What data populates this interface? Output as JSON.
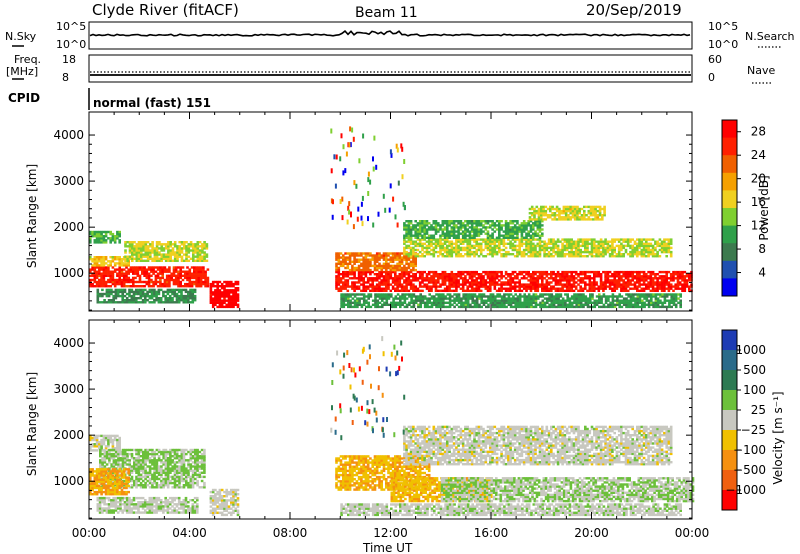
{
  "header": {
    "site": "Clyde River (fitACF)",
    "beam": "Beam 11",
    "date": "20/Sep/2019"
  },
  "top_panels": {
    "nsky_label": "N.Sky",
    "nsearch_label": "N.Search",
    "noise_ticks": [
      "10^5",
      "10^0"
    ],
    "freq_label": "Freq.",
    "freq_unit": "[MHz]",
    "freq_ticks": [
      "18",
      "8"
    ],
    "nave_label": "Nave",
    "nave_ticks": [
      "60",
      "0"
    ],
    "cpid_label": "CPID",
    "cpid_value": "normal (fast) 151"
  },
  "colors": {
    "power_scale": [
      "#0000f0",
      "#2050b0",
      "#3c7a4e",
      "#2fa04a",
      "#7fcf30",
      "#f0d020",
      "#f5a000",
      "#f06000",
      "#ff2000",
      "#ff0000"
    ],
    "velocity_scale": [
      "#1e3cb4",
      "#2a6b8a",
      "#2d7a52",
      "#6cc03a",
      "#c8c8c0",
      "#f0c000",
      "#f59010",
      "#f06010",
      "#ff0000"
    ]
  },
  "chart_data": [
    {
      "type": "heatmap",
      "name": "Power",
      "ylabel": "Slant Range [km]",
      "yticks": [
        1000,
        2000,
        3000,
        4000
      ],
      "ylim": [
        180,
        4500
      ],
      "xticks": [
        "00:00",
        "04:00",
        "08:00",
        "12:00",
        "16:00",
        "20:00",
        "00:00"
      ],
      "xlim_hours": [
        0,
        24
      ],
      "colorbar_label": "Power [dB]",
      "colorbar_ticks": [
        "4",
        "8",
        "12",
        "16",
        "20",
        "24",
        "28"
      ],
      "colorbar_range": [
        0,
        30
      ],
      "echo_bands": [
        {
          "t0": 0.0,
          "t1": 4.7,
          "r0": 700,
          "r1": 1150,
          "value": 26
        },
        {
          "t0": 0.0,
          "t1": 1.6,
          "r0": 1150,
          "r1": 1350,
          "value": 17
        },
        {
          "t0": 1.4,
          "t1": 4.7,
          "r0": 1250,
          "r1": 1700,
          "value": 15
        },
        {
          "t0": 0.0,
          "t1": 1.2,
          "r0": 1650,
          "r1": 1900,
          "value": 11
        },
        {
          "t0": 0.3,
          "t1": 4.2,
          "r0": 350,
          "r1": 650,
          "value": 9
        },
        {
          "t0": 4.8,
          "t1": 5.9,
          "r0": 250,
          "r1": 800,
          "value": 29
        },
        {
          "t0": 9.8,
          "t1": 24.0,
          "r0": 600,
          "r1": 1050,
          "value": 27
        },
        {
          "t0": 9.8,
          "t1": 13.0,
          "r0": 1050,
          "r1": 1450,
          "value": 22
        },
        {
          "t0": 12.5,
          "t1": 23.2,
          "r0": 1350,
          "r1": 1750,
          "value": 15
        },
        {
          "t0": 12.5,
          "t1": 18.0,
          "r0": 1750,
          "r1": 2150,
          "value": 11
        },
        {
          "t0": 17.5,
          "t1": 20.5,
          "r0": 2150,
          "r1": 2450,
          "value": 16
        },
        {
          "t0": 10.0,
          "t1": 23.5,
          "r0": 250,
          "r1": 550,
          "value": 10
        }
      ]
    },
    {
      "type": "heatmap",
      "name": "Velocity",
      "ylabel": "Slant Range [km]",
      "yticks": [
        1000,
        2000,
        3000,
        4000
      ],
      "ylim": [
        180,
        4500
      ],
      "xticks": [
        "00:00",
        "04:00",
        "08:00",
        "12:00",
        "16:00",
        "20:00",
        "00:00"
      ],
      "xlim_hours": [
        0,
        24
      ],
      "xlabel": "Time UT",
      "colorbar_label": "Velocity [m s⁻¹]",
      "colorbar_ticks": [
        "1000",
        "500",
        "100",
        "25",
        "−25",
        "−100",
        "−500",
        "−1000"
      ],
      "colorbar_range": [
        -1200,
        1200
      ],
      "echo_bands": [
        {
          "t0": 0.0,
          "t1": 1.2,
          "r0": 1650,
          "r1": 2000,
          "value": 0
        },
        {
          "t0": 0.4,
          "t1": 4.6,
          "r0": 850,
          "r1": 1700,
          "value": 180
        },
        {
          "t0": 0.0,
          "t1": 1.6,
          "r0": 700,
          "r1": 1250,
          "value": -400
        },
        {
          "t0": 0.3,
          "t1": 4.3,
          "r0": 300,
          "r1": 650,
          "value": 60
        },
        {
          "t0": 4.8,
          "t1": 5.9,
          "r0": 250,
          "r1": 800,
          "value": 0
        },
        {
          "t0": 9.8,
          "t1": 13.5,
          "r0": 800,
          "r1": 1550,
          "value": -350
        },
        {
          "t0": 12.5,
          "t1": 23.2,
          "r0": 1350,
          "r1": 2200,
          "value": 0
        },
        {
          "t0": 12.0,
          "t1": 16.0,
          "r0": 550,
          "r1": 1050,
          "value": -300
        },
        {
          "t0": 14.0,
          "t1": 24.0,
          "r0": 550,
          "r1": 1050,
          "value": 120
        },
        {
          "t0": 10.0,
          "t1": 23.5,
          "r0": 250,
          "r1": 500,
          "value": 40
        }
      ]
    }
  ]
}
